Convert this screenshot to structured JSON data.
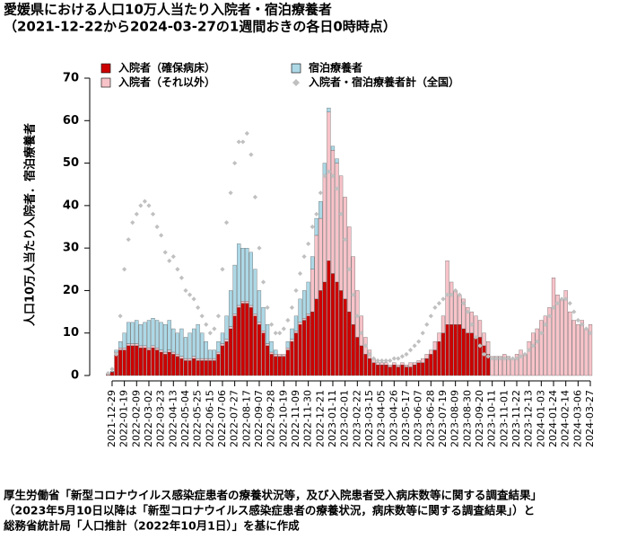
{
  "chart_data": {
    "type": "bar",
    "stacked": true,
    "title": "愛媛県における人口10万人当たり入院者・宿泊療養者",
    "subtitle": "（2021-12-22から2024-03-27の1週間おきの各日0時時点）",
    "y_label": "人口10万人当たり入院者．宿泊療養者",
    "notes": [
      "厚生労働省「新型コロナウイルス感染症患者の療養状況等，及び入院患者受入病床数等に関する調査結果」",
      "（2023年5月10日以降は「新型コロナウイルス感染症患者の療養状況，病床数等に関する調査結果」）と",
      "総務省統計局「人口推計（2022年10月1日）」を基に作成"
    ],
    "ylim": [
      0,
      70
    ],
    "yticks": [
      0,
      10,
      20,
      30,
      40,
      50,
      60,
      70
    ],
    "categories": [
      null,
      "2021-12-29",
      null,
      null,
      "2022-01-19",
      null,
      null,
      "2022-02-09",
      null,
      null,
      "2022-03-02",
      null,
      null,
      "2022-03-23",
      null,
      null,
      "2022-04-13",
      null,
      null,
      "2022-05-04",
      null,
      null,
      "2022-05-25",
      null,
      null,
      "2022-06-15",
      null,
      null,
      "2022-07-06",
      null,
      null,
      "2022-07-27",
      null,
      null,
      "2022-08-17",
      null,
      null,
      "2022-09-07",
      null,
      null,
      "2022-09-28",
      null,
      null,
      "2022-10-19",
      null,
      null,
      "2022-11-09",
      null,
      null,
      "2022-11-30",
      null,
      null,
      "2022-12-21",
      null,
      null,
      "2023-01-11",
      null,
      null,
      "2023-02-01",
      null,
      null,
      "2023-02-22",
      null,
      null,
      "2023-03-15",
      null,
      null,
      "2023-04-05",
      null,
      null,
      "2023-04-26",
      null,
      null,
      "2023-05-17",
      null,
      null,
      "2023-06-07",
      null,
      null,
      "2023-06-28",
      null,
      null,
      "2023-07-19",
      null,
      null,
      "2023-08-09",
      null,
      null,
      "2023-08-30",
      null,
      null,
      "2023-09-20",
      null,
      null,
      "2023-10-11",
      null,
      null,
      "2023-11-01",
      null,
      null,
      "2023-11-22",
      null,
      null,
      "2023-12-13",
      null,
      null,
      "2024-01-03",
      null,
      null,
      "2024-01-24",
      null,
      null,
      "2024-02-14",
      null,
      null,
      "2024-03-06",
      null,
      null,
      "2024-03-27"
    ],
    "series": [
      {
        "name": "入院者（確保病床）",
        "type": "bar",
        "color": "#cc0000",
        "values": [
          0.2,
          0.8,
          5,
          6,
          6,
          7,
          7,
          7,
          6.5,
          6.5,
          6,
          6.5,
          6,
          5.5,
          5,
          5.5,
          5,
          4.5,
          4,
          3.5,
          3.5,
          4,
          3.5,
          3.5,
          3.5,
          3.5,
          3.5,
          5,
          7,
          8,
          11,
          14,
          16,
          17,
          17,
          16,
          14,
          12,
          10,
          7,
          5,
          4.5,
          4.5,
          4.5,
          6,
          8,
          10,
          12,
          13,
          14,
          15,
          18,
          20,
          22,
          27,
          24,
          22,
          20,
          18,
          15,
          12,
          9,
          7,
          5,
          4,
          3,
          2.5,
          2.5,
          2.5,
          2,
          2.5,
          2,
          2.5,
          2,
          2,
          2.5,
          3,
          3,
          4,
          5,
          6,
          8,
          10,
          12,
          12,
          12,
          12,
          11,
          10,
          10,
          9,
          9,
          7,
          5,
          0,
          0,
          0,
          0,
          0,
          0,
          0,
          0,
          0,
          0,
          0,
          0,
          0,
          0,
          0,
          0,
          0,
          0,
          0,
          0,
          0,
          0,
          0,
          0,
          0
        ]
      },
      {
        "name": "入院者（それ以外）",
        "type": "bar",
        "color": "#f7c3c9",
        "values": [
          0,
          0,
          0.5,
          0.5,
          0.5,
          0.5,
          0.5,
          0.5,
          0.5,
          0.5,
          0.5,
          0.5,
          0.5,
          0.5,
          0.5,
          0.5,
          0.5,
          0.5,
          0.5,
          0.5,
          0.5,
          0.5,
          0.5,
          0.5,
          0.5,
          0.5,
          0.5,
          0.5,
          0.5,
          0.5,
          0.5,
          0.5,
          0.5,
          0.5,
          0.5,
          0.5,
          0.5,
          0.5,
          0.5,
          0.5,
          0.5,
          0.5,
          0.5,
          0.5,
          0.5,
          0.5,
          0.5,
          0.5,
          0.5,
          0.5,
          10,
          15,
          17,
          25,
          35,
          29,
          28,
          27,
          24,
          20,
          16,
          11,
          7,
          4,
          2,
          1,
          0.5,
          0.5,
          0.5,
          0.5,
          0.5,
          0.5,
          0.5,
          0.5,
          1,
          0.5,
          0.5,
          1,
          1,
          1,
          2,
          2,
          4,
          15,
          10,
          8,
          7,
          7,
          6,
          5,
          5,
          4,
          3,
          3,
          4.5,
          4.5,
          4.5,
          5,
          4.5,
          4,
          5,
          6,
          5,
          8,
          10,
          11,
          13,
          14,
          16,
          23,
          19,
          18,
          20,
          15,
          13,
          12,
          13,
          11,
          12
        ]
      },
      {
        "name": "宿泊療養者",
        "type": "bar",
        "color": "#add8e6",
        "values": [
          0.1,
          0.2,
          0.5,
          1.5,
          3.5,
          5,
          5,
          5.5,
          5,
          5.5,
          6.5,
          6.5,
          6.5,
          6.5,
          6.5,
          7,
          5.5,
          5,
          6.5,
          5,
          6,
          6.5,
          8,
          6,
          4,
          2,
          2,
          2.5,
          2.5,
          5.5,
          8.5,
          11.5,
          14.5,
          12.5,
          12.5,
          12.5,
          10.5,
          7.5,
          5.5,
          4.5,
          2.5,
          1,
          0,
          0,
          1.5,
          2.5,
          3.5,
          5.5,
          6.5,
          7.5,
          3,
          4,
          4,
          3,
          1,
          1,
          1,
          0,
          0,
          0,
          0,
          0,
          0,
          0,
          0,
          0,
          0,
          0,
          0,
          0,
          0,
          0,
          0,
          0,
          0,
          0,
          0,
          0,
          0,
          0,
          0,
          0,
          0,
          0,
          0,
          0,
          0,
          0,
          0,
          0,
          0,
          0,
          0,
          0,
          0,
          0,
          0,
          0,
          0,
          0,
          0,
          0,
          0,
          0,
          0,
          0,
          0,
          0,
          0,
          0,
          0,
          0,
          0,
          0,
          0,
          0,
          0,
          0,
          0
        ]
      },
      {
        "name": "入院者・宿泊療養者計（全国）",
        "type": "scatter",
        "color": "#c0c0c0",
        "values": [
          0.5,
          1.5,
          5,
          14,
          25,
          32,
          36,
          38,
          40,
          41,
          40,
          38,
          35,
          33,
          29,
          27,
          28,
          25,
          23,
          20,
          19,
          18,
          16,
          14,
          12,
          10,
          11,
          14,
          25,
          36,
          43,
          50,
          55,
          55,
          57,
          52,
          42,
          30,
          22,
          16,
          12,
          10,
          10,
          11,
          13,
          16,
          20,
          24,
          28,
          31,
          35,
          38,
          43,
          47,
          48,
          47,
          44,
          38,
          32,
          25,
          19,
          14,
          10,
          7,
          5,
          4,
          3.5,
          3.5,
          3.5,
          3.5,
          4,
          4,
          4.5,
          5,
          6,
          7,
          8,
          10,
          12,
          14,
          16,
          17,
          18,
          19,
          19,
          20,
          19,
          17,
          15,
          12,
          9,
          7,
          5,
          4.5,
          4,
          4,
          4,
          4,
          4,
          4,
          4,
          4.5,
          5,
          6,
          7,
          8,
          10,
          12,
          14,
          16,
          17,
          18,
          18,
          17,
          15,
          13,
          12,
          11,
          10
        ]
      }
    ]
  }
}
